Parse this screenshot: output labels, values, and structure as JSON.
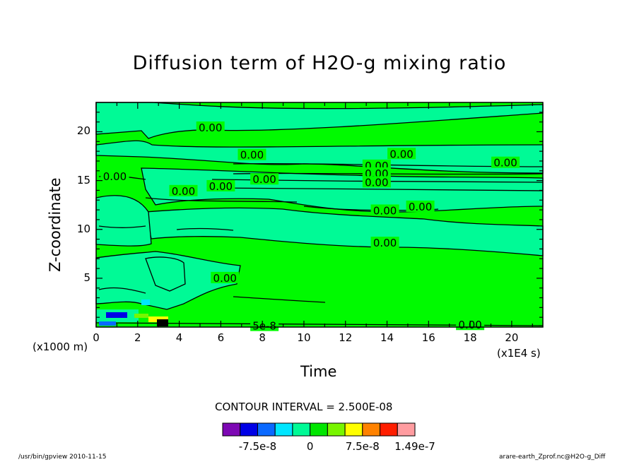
{
  "chart_data": {
    "type": "heatmap",
    "title": "Diffusion term of H2O-g mixing ratio",
    "xlabel": "Time",
    "ylabel": "Z-coordinate",
    "x_unit": "(x1E4 s)",
    "y_unit": "(x1000 m)",
    "xlim": [
      0,
      21.5
    ],
    "ylim": [
      0,
      23
    ],
    "x_ticks": [
      0,
      2,
      4,
      6,
      8,
      10,
      12,
      14,
      16,
      18,
      20
    ],
    "x_tick_labels": [
      "0",
      "2",
      "4",
      "6",
      "8",
      "10",
      "12",
      "14",
      "16",
      "18",
      "20"
    ],
    "y_ticks": [
      5,
      10,
      15,
      20
    ],
    "y_tick_labels": [
      "5",
      "10",
      "15",
      "20"
    ],
    "contour_interval_text": "CONTOUR INTERVAL = 2.500E-08",
    "contour_labels": [
      {
        "text": "0.00",
        "x": 5.5,
        "y": 20.4
      },
      {
        "text": "0.00",
        "x": 7.5,
        "y": 17.6
      },
      {
        "text": "0.00",
        "x": 14.7,
        "y": 17.7
      },
      {
        "text": "0.00",
        "x": 19.7,
        "y": 16.8
      },
      {
        "text": "0.00",
        "x": 13.5,
        "y": 16.5
      },
      {
        "text": "0.00",
        "x": 13.5,
        "y": 15.7
      },
      {
        "text": "0.00",
        "x": 13.5,
        "y": 14.8
      },
      {
        "text": "0.00",
        "x": 0.9,
        "y": 15.4
      },
      {
        "text": "0.00",
        "x": 8.1,
        "y": 15.1
      },
      {
        "text": "0.00",
        "x": 6.0,
        "y": 14.4
      },
      {
        "text": "0.00",
        "x": 4.2,
        "y": 13.9
      },
      {
        "text": "0.00",
        "x": 13.9,
        "y": 11.9
      },
      {
        "text": "0.00",
        "x": 15.6,
        "y": 12.3
      },
      {
        "text": "0.00",
        "x": 13.9,
        "y": 8.6
      },
      {
        "text": "0.00",
        "x": 18.0,
        "y": 0.2
      },
      {
        "text": "0.00",
        "x": 6.2,
        "y": 5.0
      },
      {
        "text": "5e-8",
        "x": 8.1,
        "y": 0.1
      }
    ],
    "colorbar": {
      "colors": [
        "#7d08b4",
        "#0000e6",
        "#0a69ff",
        "#00e6ff",
        "#00fa96",
        "#00e600",
        "#78f500",
        "#ffff00",
        "#ff8200",
        "#ff1e00",
        "#ff9ca0"
      ],
      "labels": [
        "-7.5e-8",
        "0",
        "7.5e-8",
        "1.49e-7"
      ]
    },
    "background_level_color": "#00fa00",
    "grid": false
  },
  "footer": {
    "left": "/usr/bin/gpview  2010-11-15",
    "right": "arare-earth_Zprof.nc@H2O-g_Diff"
  }
}
